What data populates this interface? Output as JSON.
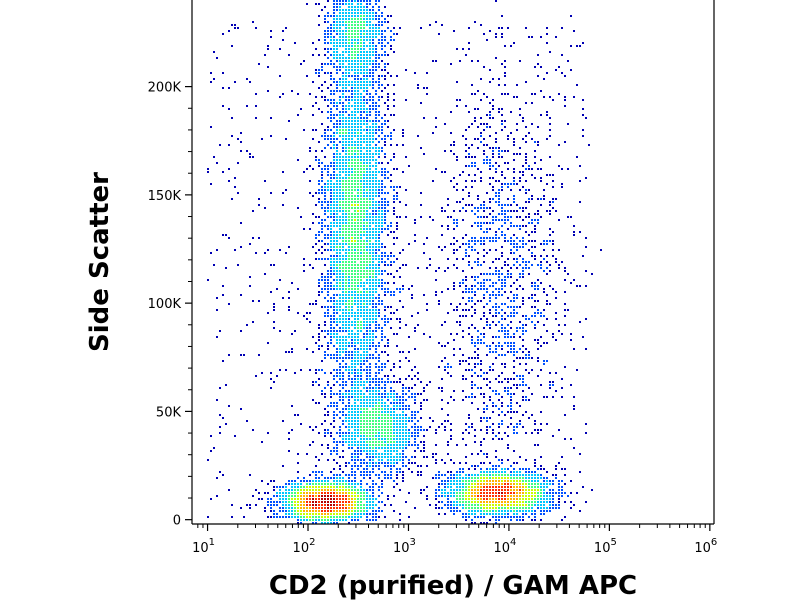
{
  "chart_data": {
    "type": "scatter",
    "plot_style": "flow cytometry pseudocolor density plot",
    "xlabel": "CD2 (purified) / GAM APC",
    "ylabel": "Side Scatter",
    "x_scale": "log",
    "x_ticks": [
      {
        "value": 10,
        "base": "10",
        "exp": "1"
      },
      {
        "value": 100,
        "base": "10",
        "exp": "2"
      },
      {
        "value": 1000,
        "base": "10",
        "exp": "3"
      },
      {
        "value": 10000,
        "base": "10",
        "exp": "4"
      },
      {
        "value": 100000,
        "base": "10",
        "exp": "5"
      },
      {
        "value": 1000000,
        "base": "10",
        "exp": "6"
      }
    ],
    "xlim": [
      7,
      1100000
    ],
    "y_ticks": [
      {
        "value": 0,
        "label": "0"
      },
      {
        "value": 50000,
        "label": "50K"
      },
      {
        "value": 100000,
        "label": "100K"
      },
      {
        "value": 150000,
        "label": "150K"
      },
      {
        "value": 200000,
        "label": "200K"
      }
    ],
    "ylim": [
      -2000,
      240000
    ],
    "grid": false,
    "legend": "none",
    "colormap": [
      "#0000b4",
      "#0050ff",
      "#00c8ff",
      "#40ff80",
      "#c8ff00",
      "#ffb400",
      "#ff3000",
      "#b40000"
    ],
    "populations": [
      {
        "x_center": 300,
        "y_center": 135000,
        "x_spread_decades": 0.16,
        "y_spread": 42000,
        "weight": 0.34
      },
      {
        "x_center": 150,
        "y_center": 8000,
        "x_spread_decades": 0.22,
        "y_spread": 4500,
        "weight": 0.2
      },
      {
        "x_center": 8000,
        "y_center": 12000,
        "x_spread_decades": 0.25,
        "y_spread": 5000,
        "weight": 0.2
      },
      {
        "x_center": 500,
        "y_center": 42000,
        "x_spread_decades": 0.2,
        "y_spread": 10000,
        "weight": 0.1
      },
      {
        "x_center": 8000,
        "y_center": 110000,
        "x_spread_decades": 0.3,
        "y_spread": 50000,
        "weight": 0.09
      },
      {
        "x_center": 300,
        "y_center": 225000,
        "x_spread_decades": 0.15,
        "y_spread": 12000,
        "weight": 0.07
      }
    ]
  }
}
